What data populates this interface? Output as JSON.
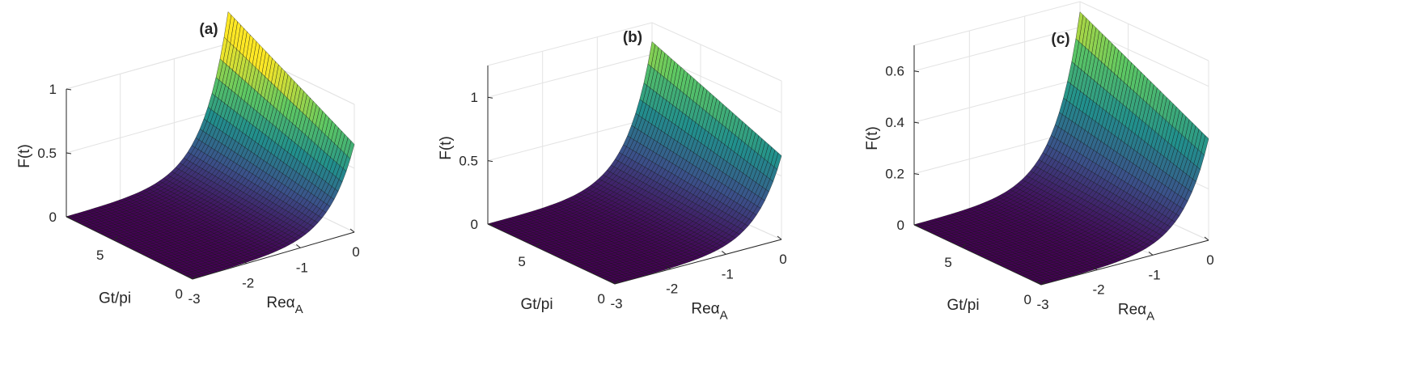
{
  "figure": {
    "colormap_stops": [
      "#440154",
      "#3b528b",
      "#21908d",
      "#5dc863",
      "#fde725"
    ]
  },
  "chart_data": [
    {
      "type": "surface",
      "title": "(a)",
      "xlabel": "Gt/pi",
      "ylabel": "Reα",
      "ylabel_sub": "A",
      "zlabel": "F(t)",
      "x_range": [
        0,
        8
      ],
      "y_range": [
        -3,
        0
      ],
      "zlim": [
        0,
        1
      ],
      "x_ticks": [
        {
          "v": 0,
          "label": "0"
        },
        {
          "v": 5,
          "label": "5"
        }
      ],
      "y_ticks": [
        {
          "v": -3,
          "label": "-3"
        },
        {
          "v": -2,
          "label": "-2"
        },
        {
          "v": -1,
          "label": "-1"
        },
        {
          "v": 0,
          "label": "0"
        }
      ],
      "z_ticks": [
        {
          "v": 0,
          "label": "0"
        },
        {
          "v": 0.5,
          "label": "0.5"
        },
        {
          "v": 1,
          "label": "1"
        }
      ],
      "function": "F = Fmax * exp(2.2*y) * (0.55 + 0.45*x/8)",
      "params": {
        "Fmax": 1.25,
        "k": 2.2,
        "x_base": 0.55
      },
      "grid": true
    },
    {
      "type": "surface",
      "title": "(b)",
      "xlabel": "Gt/pi",
      "ylabel": "Reα",
      "ylabel_sub": "A",
      "zlabel": "F(t)",
      "x_range": [
        0,
        8
      ],
      "y_range": [
        -3,
        0
      ],
      "zlim": [
        0,
        1.25
      ],
      "x_ticks": [
        {
          "v": 0,
          "label": "0"
        },
        {
          "v": 5,
          "label": "5"
        }
      ],
      "y_ticks": [
        {
          "v": -3,
          "label": "-3"
        },
        {
          "v": -2,
          "label": "-2"
        },
        {
          "v": -1,
          "label": "-1"
        },
        {
          "v": 0,
          "label": "0"
        }
      ],
      "z_ticks": [
        {
          "v": 0,
          "label": "0"
        },
        {
          "v": 0.5,
          "label": "0.5"
        },
        {
          "v": 1,
          "label": "1"
        }
      ],
      "function": "F = Fmax * exp(2.2*y) * (0.6 + 0.4*x/8)",
      "params": {
        "Fmax": 1.1,
        "k": 2.2,
        "x_base": 0.6
      },
      "grid": true
    },
    {
      "type": "surface",
      "title": "(c)",
      "xlabel": "Gt/pi",
      "ylabel": "Reα",
      "ylabel_sub": "A",
      "zlabel": "F(t)",
      "x_range": [
        0,
        8
      ],
      "y_range": [
        -3,
        0
      ],
      "zlim": [
        0,
        0.7
      ],
      "x_ticks": [
        {
          "v": 0,
          "label": "0"
        },
        {
          "v": 5,
          "label": "5"
        }
      ],
      "y_ticks": [
        {
          "v": -3,
          "label": "-3"
        },
        {
          "v": -2,
          "label": "-2"
        },
        {
          "v": -1,
          "label": "-1"
        },
        {
          "v": 0,
          "label": "0"
        }
      ],
      "z_ticks": [
        {
          "v": 0,
          "label": "0"
        },
        {
          "v": 0.2,
          "label": "0.2"
        },
        {
          "v": 0.4,
          "label": "0.4"
        },
        {
          "v": 0.6,
          "label": "0.6"
        }
      ],
      "function": "F = Fmax * exp(2.2*y) * (0.6 + 0.4*x/8)",
      "params": {
        "Fmax": 0.66,
        "k": 2.2,
        "x_base": 0.6
      },
      "grid": true
    }
  ]
}
